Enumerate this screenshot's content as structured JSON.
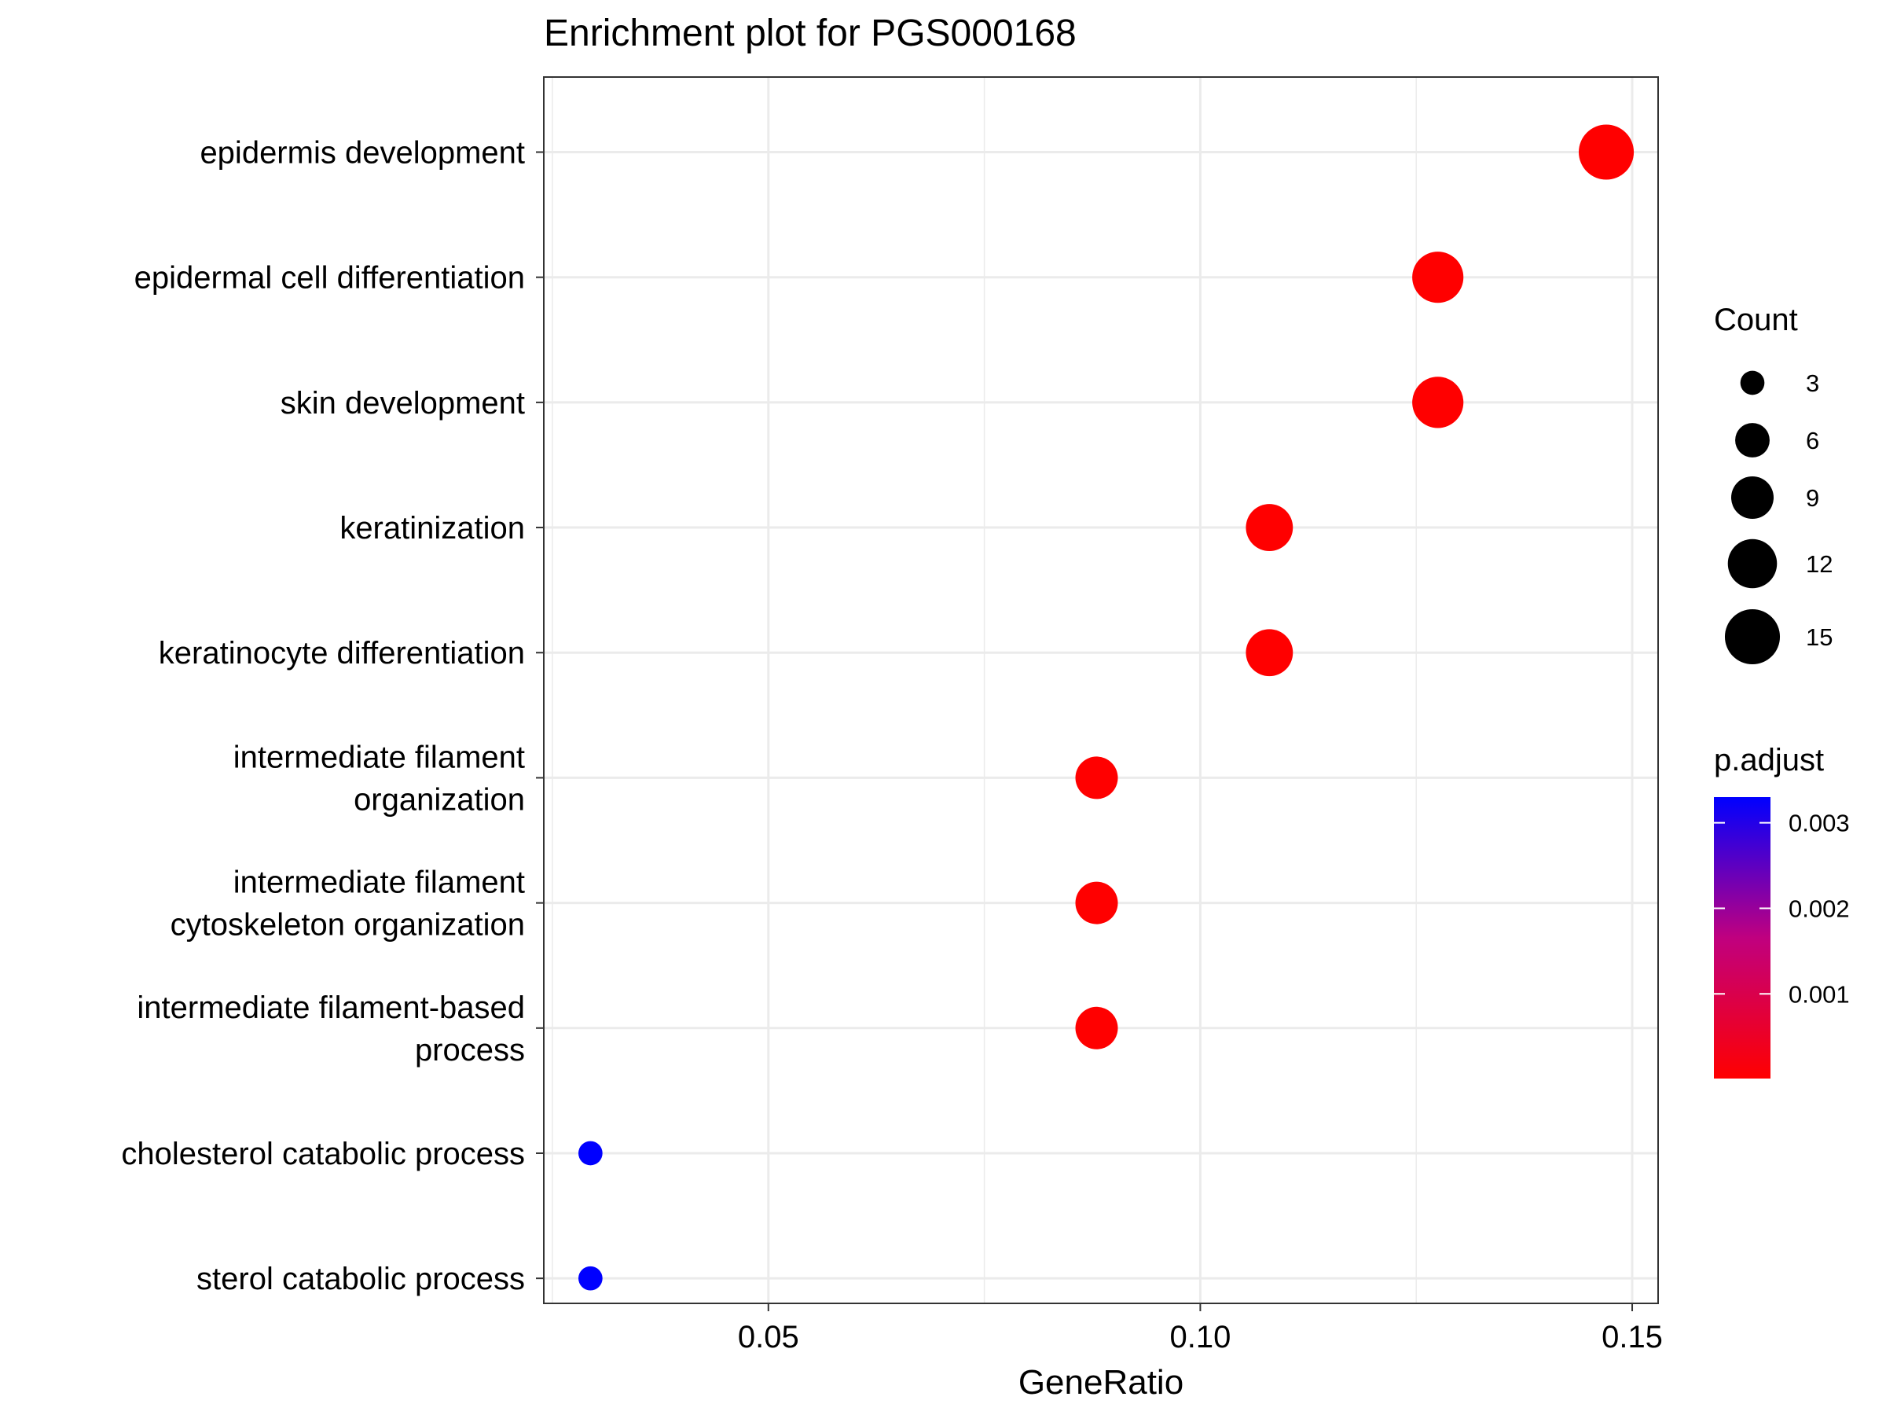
{
  "chart_data": {
    "type": "scatter",
    "title": "Enrichment plot for PGS000168",
    "xlabel": "GeneRatio",
    "ylabel": "",
    "xlim": [
      0.024,
      0.153
    ],
    "xticks": [
      {
        "value": 0.05,
        "label": "0.05"
      },
      {
        "value": 0.1,
        "label": "0.10"
      },
      {
        "value": 0.15,
        "label": "0.15"
      }
    ],
    "grid": true,
    "categories": [
      {
        "lines": [
          "epidermis development"
        ],
        "gene_ratio": 0.147,
        "count": 15,
        "p_adjust": 1e-05
      },
      {
        "lines": [
          "epidermal cell differentiation"
        ],
        "gene_ratio": 0.1275,
        "count": 13,
        "p_adjust": 1e-05
      },
      {
        "lines": [
          "skin development"
        ],
        "gene_ratio": 0.1275,
        "count": 13,
        "p_adjust": 1e-05
      },
      {
        "lines": [
          "keratinization"
        ],
        "gene_ratio": 0.108,
        "count": 11,
        "p_adjust": 1e-05
      },
      {
        "lines": [
          "keratinocyte differentiation"
        ],
        "gene_ratio": 0.108,
        "count": 11,
        "p_adjust": 1e-05
      },
      {
        "lines": [
          "intermediate filament",
          "organization"
        ],
        "gene_ratio": 0.088,
        "count": 9,
        "p_adjust": 1e-05
      },
      {
        "lines": [
          "intermediate filament",
          "cytoskeleton organization"
        ],
        "gene_ratio": 0.088,
        "count": 9,
        "p_adjust": 1e-05
      },
      {
        "lines": [
          "intermediate filament-based",
          "process"
        ],
        "gene_ratio": 0.088,
        "count": 9,
        "p_adjust": 1e-05
      },
      {
        "lines": [
          "cholesterol catabolic process"
        ],
        "gene_ratio": 0.0294,
        "count": 3,
        "p_adjust": 0.0033
      },
      {
        "lines": [
          "sterol catabolic process"
        ],
        "gene_ratio": 0.0294,
        "count": 3,
        "p_adjust": 0.0033
      }
    ],
    "legend_size": {
      "title": "Count",
      "position": "right",
      "items": [
        {
          "value": 3,
          "label": "3"
        },
        {
          "value": 6,
          "label": "6"
        },
        {
          "value": 9,
          "label": "9"
        },
        {
          "value": 12,
          "label": "12"
        },
        {
          "value": 15,
          "label": "15"
        }
      ]
    },
    "legend_color": {
      "title": "p.adjust",
      "position": "right",
      "range": [
        1e-05,
        0.0033
      ],
      "ticks": [
        {
          "value": 0.001,
          "label": "0.001"
        },
        {
          "value": 0.002,
          "label": "0.002"
        },
        {
          "value": 0.003,
          "label": "0.003"
        }
      ],
      "low_color": "#FF0000",
      "high_color": "#0000FF"
    },
    "colors": {
      "point_low": "#FF0000",
      "point_high": "#0000FF",
      "grid": "#EBEBEB",
      "panel_border": "#333333",
      "legend_key": "#000000"
    }
  }
}
